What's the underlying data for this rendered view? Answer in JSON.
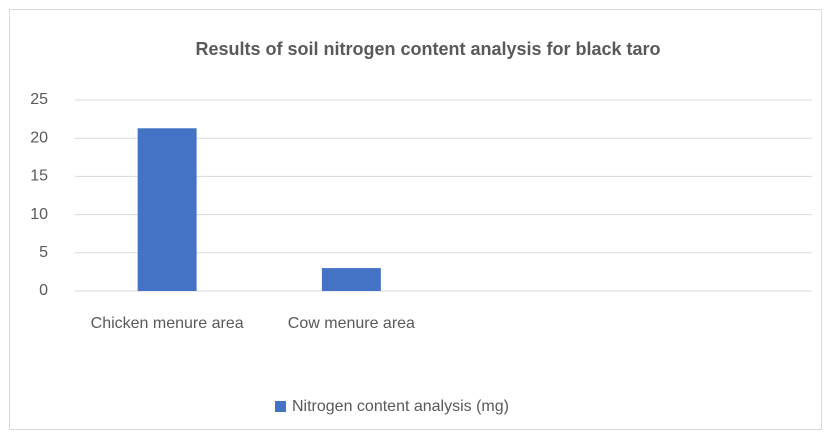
{
  "chart_data": {
    "type": "bar",
    "title": "Results of soil nitrogen content analysis for black taro",
    "categories": [
      "Chicken menure area",
      "Cow menure area",
      null,
      null
    ],
    "series": [
      {
        "name": "Nitrogen content analysis (mg)",
        "color": "#4472c4",
        "values": [
          21.3,
          3.0,
          null,
          null
        ]
      }
    ],
    "ylim": [
      0,
      25
    ],
    "yticks": [
      0,
      5,
      10,
      15,
      20,
      25
    ],
    "grid": true,
    "legend": "bottom"
  }
}
